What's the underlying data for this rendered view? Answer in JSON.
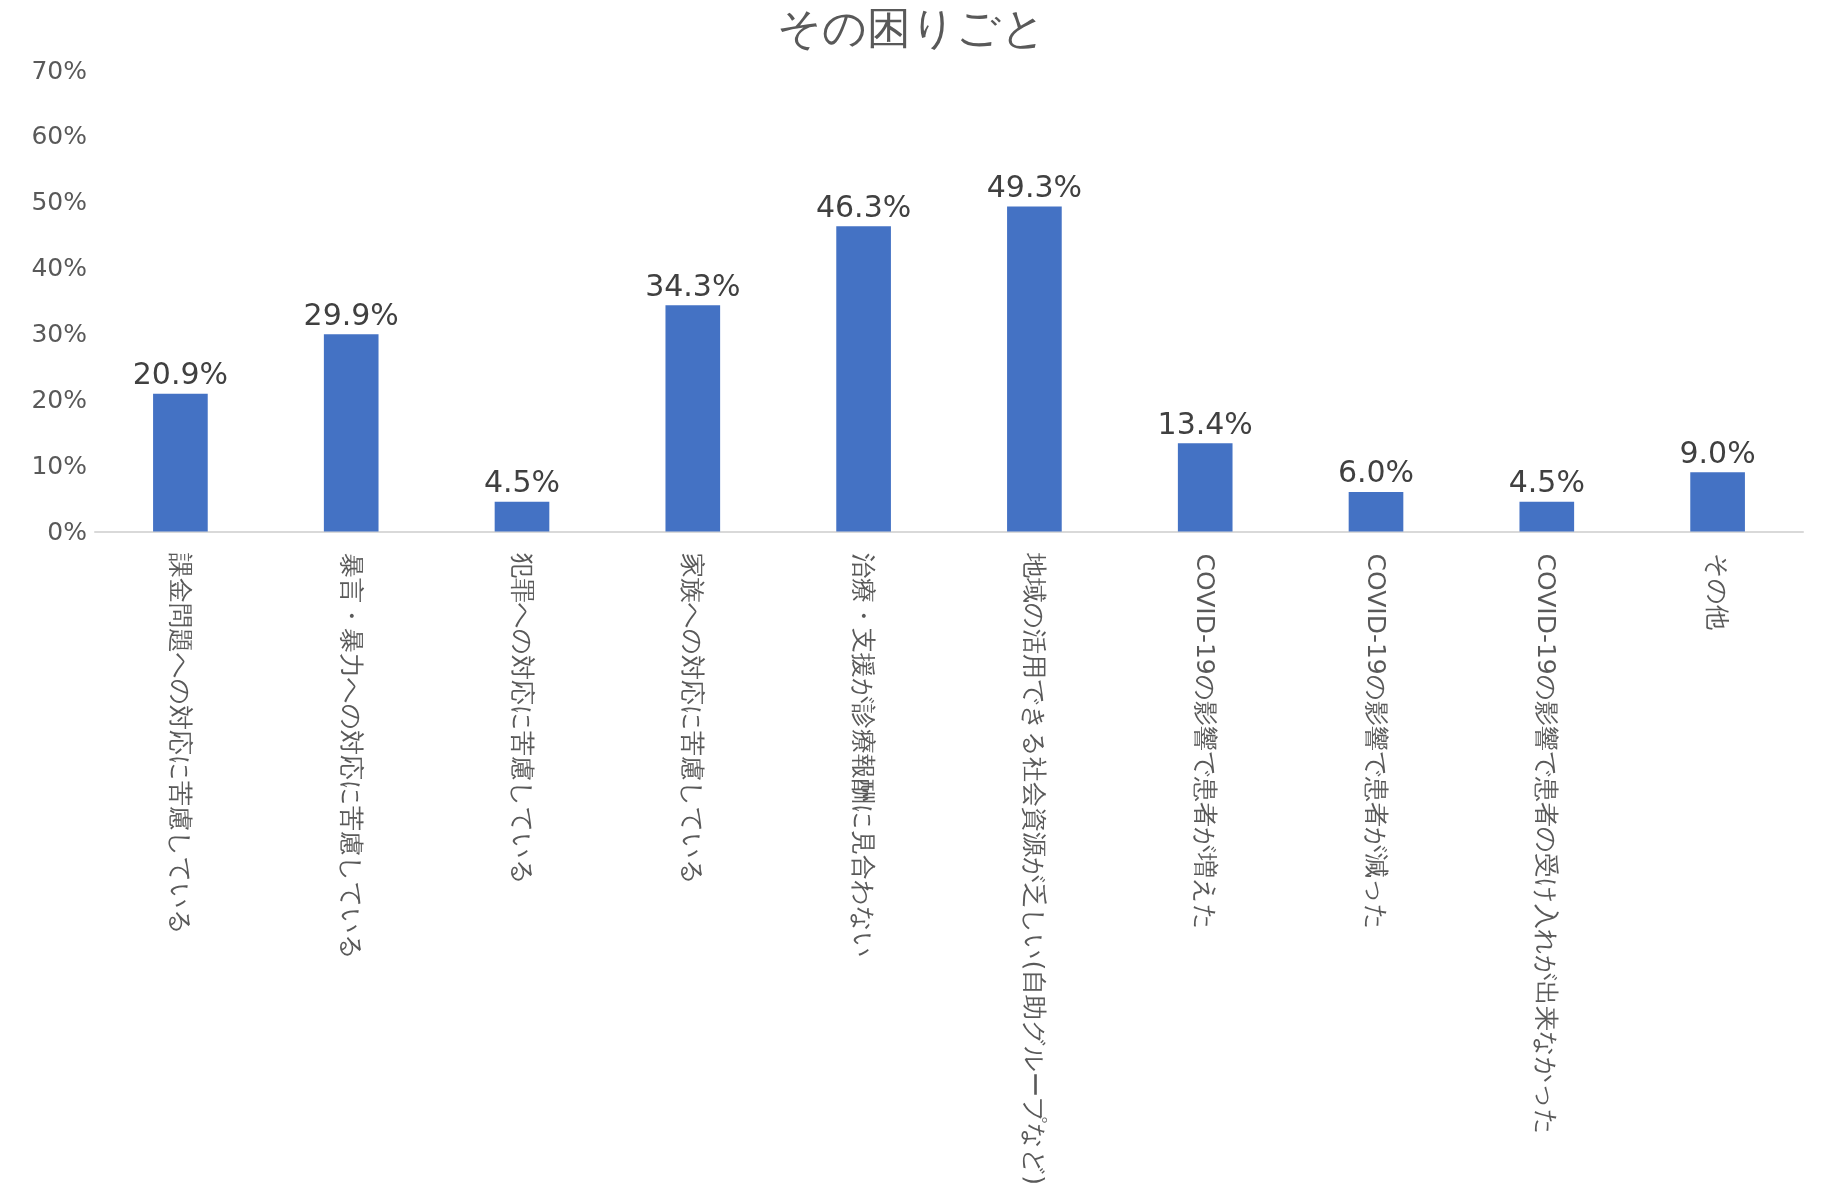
{
  "chart_data": {
    "type": "bar",
    "title": "その困りごと",
    "categories": [
      "課金問題への対応に苦慮している",
      "暴言・暴力への対応に苦慮している",
      "犯罪への対応に苦慮している",
      "家族への対応に苦慮している",
      "治療・支援が診療報酬に見合わない",
      "地域の活用できる社会資源が乏しい(自助グループなど)",
      "COVID-19の影響で患者が増えた",
      "COVID-19の影響で患者が減った",
      "COVID-19の影響で患者の受け入れが出来なかった",
      "その他"
    ],
    "values": [
      20.9,
      29.9,
      4.5,
      34.3,
      46.3,
      49.3,
      13.4,
      6.0,
      4.5,
      9.0
    ],
    "value_labels": [
      "20.9%",
      "29.9%",
      "4.5%",
      "34.3%",
      "46.3%",
      "49.3%",
      "13.4%",
      "6.0%",
      "4.5%",
      "9.0%"
    ],
    "color": "#4472c4",
    "ylim": [
      0,
      70
    ],
    "yticks": [
      {
        "value": 0,
        "label": "0%"
      },
      {
        "value": 10,
        "label": "10%"
      },
      {
        "value": 20,
        "label": "20%"
      },
      {
        "value": 30,
        "label": "30%"
      },
      {
        "value": 40,
        "label": "40%"
      },
      {
        "value": 50,
        "label": "50%"
      },
      {
        "value": 60,
        "label": "60%"
      },
      {
        "value": 70,
        "label": "70%"
      }
    ],
    "grid": false
  }
}
